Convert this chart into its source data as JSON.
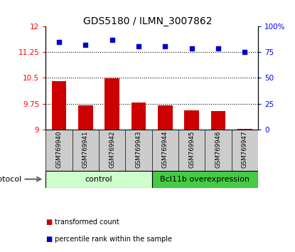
{
  "title": "GDS5180 / ILMN_3007862",
  "samples": [
    "GSM769940",
    "GSM769941",
    "GSM769942",
    "GSM769943",
    "GSM769944",
    "GSM769945",
    "GSM769946",
    "GSM769947"
  ],
  "bar_values": [
    10.4,
    9.7,
    10.48,
    9.78,
    9.7,
    9.55,
    9.53,
    9.02
  ],
  "dot_values": [
    85,
    82,
    87,
    81,
    81,
    79,
    79,
    75
  ],
  "ylim_left": [
    9,
    12
  ],
  "ylim_right": [
    0,
    100
  ],
  "yticks_left": [
    9,
    9.75,
    10.5,
    11.25,
    12
  ],
  "yticks_right": [
    0,
    25,
    50,
    75,
    100
  ],
  "bar_color": "#cc0000",
  "dot_color": "#0000cc",
  "bar_bottom": 9,
  "control_color": "#ccffcc",
  "overexp_color": "#44cc44",
  "control_label": "control",
  "overexp_label": "Bcl11b overexpression",
  "protocol_label": "protocol",
  "legend_bar_label": "transformed count",
  "legend_dot_label": "percentile rank within the sample",
  "tick_label_bg": "#cccccc",
  "title_fontsize": 10
}
